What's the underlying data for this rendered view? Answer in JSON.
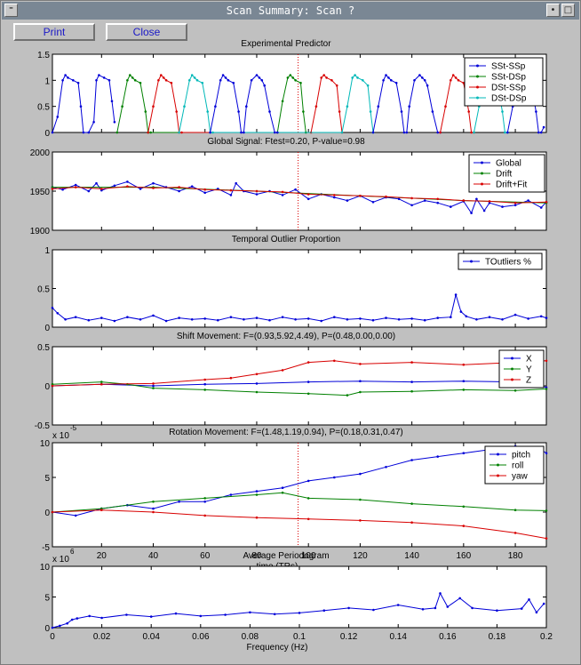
{
  "window": {
    "title": "Scan Summary: Scan ?"
  },
  "toolbar": {
    "print_label": "Print",
    "close_label": "Close"
  },
  "chart_data": [
    {
      "id": "predictor",
      "type": "line",
      "title": "Experimental Predictor",
      "xlim": [
        1,
        192
      ],
      "ylim": [
        0,
        1.5
      ],
      "yticks": [
        0,
        0.5,
        1,
        1.5
      ],
      "ytick_labels": [
        "0",
        "0.5",
        "1",
        "1.5"
      ],
      "xticks": [
        20,
        40,
        60,
        80,
        100,
        120,
        140,
        160,
        180
      ],
      "show_xtick_labels": false,
      "marker_line": 96,
      "legend": "top-right",
      "series": [
        {
          "name": "SSt-SSp",
          "color": "#0000d8",
          "x": [
            1,
            3,
            5,
            6,
            7,
            9,
            11,
            12,
            13,
            15,
            17,
            18,
            19,
            21,
            23,
            24,
            25
          ],
          "values": [
            0,
            0.3,
            1,
            1.1,
            1.05,
            1,
            0.95,
            0.5,
            0,
            0,
            0.2,
            1,
            1.1,
            1.05,
            1,
            0.6,
            0.2
          ]
        },
        {
          "name": "SSt-DSp",
          "color": "#008000",
          "x": [
            26,
            28,
            30,
            31,
            32,
            33,
            35,
            37,
            38,
            39,
            88,
            90,
            92,
            93,
            94,
            95,
            97,
            98,
            99
          ],
          "values": [
            0,
            0.5,
            1,
            1.1,
            1.05,
            1,
            0.95,
            0.4,
            0,
            0,
            0,
            0.6,
            1.05,
            1.1,
            1.05,
            1,
            0.95,
            0.4,
            0
          ]
        },
        {
          "name": "DSt-SSp",
          "color": "#d80000",
          "x": [
            38,
            40,
            42,
            43,
            44,
            45,
            47,
            49,
            50,
            51,
            101,
            103,
            105,
            106,
            107,
            109,
            111,
            112,
            113
          ],
          "values": [
            0,
            0.5,
            1,
            1.1,
            1.05,
            1,
            0.95,
            0.4,
            0,
            0,
            0,
            0.5,
            1.05,
            1.1,
            1.05,
            1,
            0.9,
            0.4,
            0
          ]
        },
        {
          "name": "DSt-DSp",
          "color": "#00b8b8",
          "x": [
            50,
            52,
            54,
            55,
            56,
            57,
            59,
            61,
            62,
            63,
            113,
            115,
            117,
            118,
            119,
            121,
            123,
            124,
            125
          ],
          "values": [
            0,
            0.5,
            1,
            1.1,
            1.05,
            1,
            0.95,
            0.4,
            0,
            0,
            0,
            0.5,
            1.05,
            1.1,
            1.05,
            1,
            0.9,
            0.4,
            0
          ]
        },
        {
          "name": "",
          "color": "#0000d8",
          "x": [
            62,
            64,
            66,
            67,
            68,
            69,
            71,
            73,
            74,
            75,
            76,
            78,
            80,
            81,
            82,
            83,
            85,
            87,
            88
          ],
          "values": [
            0,
            0.5,
            1,
            1.1,
            1.05,
            1,
            0.95,
            0.4,
            0,
            0,
            0.5,
            1,
            1.1,
            1.05,
            1,
            0.9,
            0.4,
            0,
            0
          ]
        },
        {
          "name": "",
          "color": "#0000d8",
          "x": [
            125,
            127,
            129,
            130,
            131,
            132,
            134,
            136,
            137,
            138,
            139,
            141,
            143,
            144,
            145,
            146,
            148,
            150,
            151
          ],
          "values": [
            0,
            0.5,
            1,
            1.1,
            1.05,
            1,
            0.95,
            0.4,
            0,
            0,
            0.5,
            1,
            1.1,
            1.05,
            1,
            0.9,
            0.4,
            0,
            0
          ]
        },
        {
          "name": "",
          "color": "#d80000",
          "x": [
            151,
            153,
            155,
            156,
            157,
            158,
            160,
            162,
            163,
            164
          ],
          "values": [
            0,
            0.5,
            1,
            1.1,
            1.05,
            1,
            0.95,
            0.4,
            0,
            0
          ]
        },
        {
          "name": "",
          "color": "#00b8b8",
          "x": [
            164,
            166,
            168,
            169,
            170,
            171,
            173,
            175,
            176,
            177
          ],
          "values": [
            0,
            0.5,
            1,
            1.1,
            1.05,
            1,
            0.95,
            0.4,
            0,
            0
          ]
        },
        {
          "name": "",
          "color": "#0000d8",
          "x": [
            177,
            179,
            181,
            182,
            183,
            184,
            186,
            188,
            189,
            190,
            191
          ],
          "values": [
            0,
            0.5,
            1,
            1.1,
            1.05,
            1,
            0.95,
            0.4,
            0,
            0,
            0.1
          ]
        }
      ]
    },
    {
      "id": "global",
      "type": "line",
      "title": "Global Signal: Ftest=0.20, P-value=0.98",
      "xlim": [
        1,
        192
      ],
      "ylim": [
        1900,
        2000
      ],
      "yticks": [
        1900,
        1950,
        2000
      ],
      "ytick_labels": [
        "1900",
        "1950",
        "2000"
      ],
      "xticks": [
        20,
        40,
        60,
        80,
        100,
        120,
        140,
        160,
        180
      ],
      "show_xtick_labels": false,
      "marker_line": 96,
      "legend": "top-right",
      "series": [
        {
          "name": "Global",
          "color": "#0000d8",
          "x": [
            1,
            5,
            10,
            15,
            18,
            20,
            25,
            30,
            35,
            40,
            45,
            50,
            55,
            60,
            65,
            70,
            72,
            75,
            80,
            85,
            90,
            95,
            100,
            105,
            110,
            115,
            120,
            125,
            130,
            135,
            140,
            145,
            150,
            155,
            160,
            163,
            165,
            168,
            170,
            175,
            180,
            185,
            190,
            192
          ],
          "values": [
            1955,
            1952,
            1958,
            1950,
            1960,
            1951,
            1957,
            1962,
            1953,
            1960,
            1955,
            1950,
            1956,
            1948,
            1953,
            1945,
            1960,
            1950,
            1946,
            1950,
            1945,
            1952,
            1940,
            1946,
            1942,
            1938,
            1944,
            1936,
            1942,
            1940,
            1932,
            1938,
            1935,
            1930,
            1937,
            1922,
            1940,
            1925,
            1935,
            1930,
            1932,
            1938,
            1929,
            1936
          ]
        },
        {
          "name": "Drift",
          "color": "#008000",
          "x": [
            1,
            40,
            80,
            120,
            160,
            192
          ],
          "values": [
            1955,
            1955,
            1950,
            1944,
            1938,
            1935
          ]
        },
        {
          "name": "Drift+Fit",
          "color": "#d80000",
          "x": [
            1,
            10,
            20,
            30,
            40,
            50,
            60,
            70,
            80,
            90,
            100,
            110,
            120,
            130,
            140,
            150,
            160,
            170,
            180,
            192
          ],
          "values": [
            1953,
            1955,
            1953,
            1956,
            1954,
            1955,
            1952,
            1951,
            1950,
            1949,
            1946,
            1945,
            1944,
            1943,
            1941,
            1940,
            1938,
            1937,
            1935,
            1936
          ]
        }
      ]
    },
    {
      "id": "outliers",
      "type": "line",
      "title": "Temporal Outlier Proportion",
      "xlim": [
        1,
        192
      ],
      "ylim": [
        0,
        1
      ],
      "yticks": [
        0,
        0.5,
        1
      ],
      "ytick_labels": [
        "0",
        "0.5",
        "1"
      ],
      "xticks": [
        20,
        40,
        60,
        80,
        100,
        120,
        140,
        160,
        180
      ],
      "show_xtick_labels": false,
      "marker_line": null,
      "legend": "top-right",
      "series": [
        {
          "name": "TOutliers %",
          "color": "#0000d8",
          "x": [
            1,
            3,
            6,
            10,
            15,
            20,
            25,
            30,
            35,
            40,
            45,
            50,
            55,
            60,
            65,
            70,
            75,
            80,
            85,
            90,
            95,
            100,
            105,
            110,
            115,
            120,
            125,
            130,
            135,
            140,
            145,
            150,
            155,
            157,
            159,
            161,
            165,
            170,
            175,
            180,
            185,
            190,
            192
          ],
          "values": [
            0.25,
            0.18,
            0.1,
            0.13,
            0.09,
            0.12,
            0.08,
            0.13,
            0.1,
            0.15,
            0.08,
            0.12,
            0.1,
            0.11,
            0.09,
            0.13,
            0.1,
            0.12,
            0.09,
            0.13,
            0.1,
            0.11,
            0.08,
            0.13,
            0.1,
            0.11,
            0.09,
            0.12,
            0.1,
            0.11,
            0.09,
            0.12,
            0.13,
            0.42,
            0.2,
            0.14,
            0.1,
            0.13,
            0.1,
            0.16,
            0.11,
            0.14,
            0.12
          ]
        }
      ]
    },
    {
      "id": "shift",
      "type": "line",
      "title": "Shift Movement: F=(0.93,5.92,4.49), P=(0.48,0.00,0.00)",
      "xlim": [
        1,
        192
      ],
      "ylim": [
        -0.5,
        0.5
      ],
      "yticks": [
        -0.5,
        0,
        0.5
      ],
      "ytick_labels": [
        "-0.5",
        "0",
        "0.5"
      ],
      "xticks": [
        20,
        40,
        60,
        80,
        100,
        120,
        140,
        160,
        180
      ],
      "show_xtick_labels": false,
      "marker_line": null,
      "legend": "top-right",
      "series": [
        {
          "name": "X",
          "color": "#0000d8",
          "x": [
            1,
            20,
            40,
            60,
            80,
            100,
            120,
            140,
            160,
            180,
            192
          ],
          "values": [
            0,
            0.02,
            0,
            0.02,
            0.03,
            0.05,
            0.06,
            0.05,
            0.06,
            0.05,
            -0.02
          ]
        },
        {
          "name": "Y",
          "color": "#008000",
          "x": [
            1,
            20,
            30,
            40,
            60,
            80,
            100,
            115,
            120,
            140,
            160,
            180,
            192
          ],
          "values": [
            0.02,
            0.05,
            0.02,
            -0.03,
            -0.05,
            -0.08,
            -0.1,
            -0.12,
            -0.08,
            -0.07,
            -0.05,
            -0.06,
            -0.04
          ]
        },
        {
          "name": "Z",
          "color": "#d80000",
          "x": [
            1,
            20,
            40,
            60,
            70,
            80,
            90,
            100,
            110,
            120,
            140,
            160,
            180,
            192
          ],
          "values": [
            0,
            0.02,
            0.03,
            0.08,
            0.1,
            0.15,
            0.2,
            0.3,
            0.32,
            0.28,
            0.3,
            0.27,
            0.3,
            0.32
          ]
        }
      ]
    },
    {
      "id": "rotation",
      "type": "line",
      "title": "Rotation Movement: F=(1.48,1.19,0.94), P=(0.18,0.31,0.47)",
      "xlim": [
        1,
        192
      ],
      "ylim": [
        -5,
        10
      ],
      "yticks": [
        -5,
        0,
        5,
        10
      ],
      "ytick_labels": [
        "-5",
        "0",
        "5",
        "10"
      ],
      "xticks": [
        20,
        40,
        60,
        80,
        100,
        120,
        140,
        160,
        180
      ],
      "show_xtick_labels": true,
      "xtick_labels": [
        "20",
        "40",
        "60",
        "80",
        "100",
        "120",
        "140",
        "160",
        "180"
      ],
      "xlabel": "time (TRs)",
      "exponent_label": "x 10",
      "exponent_power": "-5",
      "marker_line": 96,
      "legend": "top-right",
      "series": [
        {
          "name": "pitch",
          "color": "#0000d8",
          "x": [
            1,
            10,
            20,
            30,
            40,
            50,
            60,
            70,
            80,
            90,
            100,
            110,
            120,
            130,
            140,
            150,
            160,
            170,
            180,
            190,
            192
          ],
          "values": [
            0,
            -0.5,
            0.5,
            1,
            0.5,
            1.5,
            1.5,
            2.5,
            3,
            3.5,
            4.5,
            5,
            5.5,
            6.5,
            7.5,
            8,
            8.5,
            9,
            9.5,
            9,
            8.5
          ]
        },
        {
          "name": "roll",
          "color": "#008000",
          "x": [
            1,
            20,
            40,
            60,
            80,
            90,
            100,
            120,
            140,
            160,
            180,
            192
          ],
          "values": [
            0,
            0.5,
            1.5,
            2,
            2.5,
            2.8,
            2,
            1.8,
            1.2,
            0.8,
            0.3,
            0.2
          ]
        },
        {
          "name": "yaw",
          "color": "#d80000",
          "x": [
            1,
            20,
            40,
            60,
            80,
            100,
            120,
            140,
            160,
            180,
            192
          ],
          "values": [
            0,
            0.3,
            0,
            -0.5,
            -0.8,
            -1,
            -1.2,
            -1.5,
            -2,
            -3,
            -3.8
          ]
        }
      ]
    },
    {
      "id": "periodogram",
      "type": "line",
      "title": "Average Periodogram",
      "xlim": [
        0,
        0.2
      ],
      "ylim": [
        0,
        10
      ],
      "yticks": [
        0,
        5,
        10
      ],
      "ytick_labels": [
        "0",
        "5",
        "10"
      ],
      "xticks": [
        0,
        0.02,
        0.04,
        0.06,
        0.08,
        0.1,
        0.12,
        0.14,
        0.16,
        0.18,
        0.2
      ],
      "show_xtick_labels": true,
      "xtick_labels": [
        "0",
        "0.02",
        "0.04",
        "0.06",
        "0.08",
        "0.1",
        "0.12",
        "0.14",
        "0.16",
        "0.18",
        "0.2"
      ],
      "xlabel": "Frequency (Hz)",
      "exponent_label": "x 10",
      "exponent_power": "6",
      "marker_line": null,
      "legend": null,
      "series": [
        {
          "name": "",
          "color": "#0000d8",
          "x": [
            0,
            0.003,
            0.006,
            0.008,
            0.01,
            0.015,
            0.02,
            0.03,
            0.04,
            0.05,
            0.06,
            0.07,
            0.08,
            0.09,
            0.1,
            0.11,
            0.12,
            0.13,
            0.14,
            0.15,
            0.155,
            0.157,
            0.16,
            0.165,
            0.17,
            0.18,
            0.19,
            0.193,
            0.196,
            0.199
          ],
          "values": [
            0,
            0.3,
            0.7,
            1.3,
            1.5,
            1.9,
            1.6,
            2.1,
            1.8,
            2.3,
            1.9,
            2.1,
            2.5,
            2.2,
            2.4,
            2.8,
            3.2,
            2.9,
            3.7,
            3.0,
            3.2,
            5.6,
            3.4,
            4.8,
            3.2,
            2.8,
            3.1,
            4.6,
            2.5,
            3.9
          ]
        }
      ]
    }
  ]
}
